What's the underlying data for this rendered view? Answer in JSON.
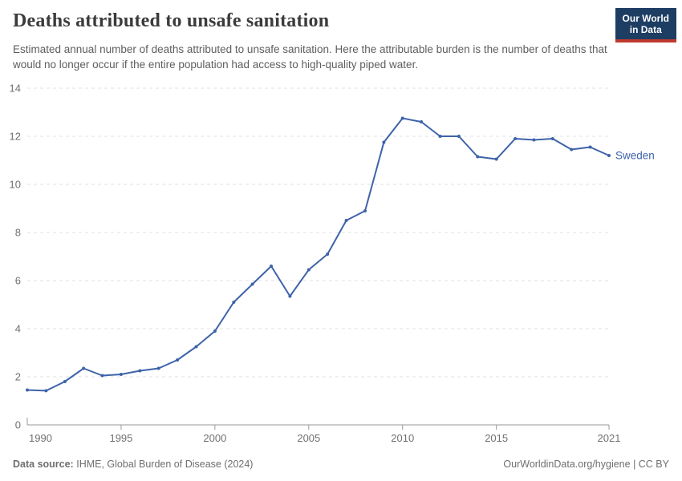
{
  "header": {
    "title": "Deaths attributed to unsafe sanitation",
    "subtitle": "Estimated annual number of deaths attributed to unsafe sanitation. Here the attributable burden is the number of deaths that would no longer occur if the entire population had access to high-quality piped water.",
    "logo": {
      "line1": "Our World",
      "line2": "in Data",
      "bg_color": "#1d3d63",
      "stripe_color": "#bf392d"
    }
  },
  "chart_data": {
    "type": "line",
    "title": "Deaths attributed to unsafe sanitation",
    "xlabel": "",
    "ylabel": "",
    "x": [
      1990,
      1991,
      1992,
      1993,
      1994,
      1995,
      1996,
      1997,
      1998,
      1999,
      2000,
      2001,
      2002,
      2003,
      2004,
      2005,
      2006,
      2007,
      2008,
      2009,
      2010,
      2011,
      2012,
      2013,
      2014,
      2015,
      2016,
      2017,
      2018,
      2019,
      2020,
      2021
    ],
    "series": [
      {
        "name": "Sweden",
        "color": "#3e63a9",
        "values": [
          1.45,
          1.42,
          1.8,
          2.35,
          2.05,
          2.1,
          2.25,
          2.35,
          2.7,
          3.25,
          3.9,
          5.1,
          5.85,
          6.6,
          5.35,
          6.45,
          7.1,
          8.5,
          8.9,
          11.75,
          12.75,
          12.6,
          12.0,
          12.0,
          11.15,
          11.05,
          11.9,
          11.85,
          11.9,
          11.45,
          11.55,
          11.2
        ]
      }
    ],
    "xlim": [
      1990,
      2021
    ],
    "ylim": [
      0,
      14
    ],
    "yticks": [
      0,
      2,
      4,
      6,
      8,
      10,
      12,
      14
    ],
    "xticks": [
      1990,
      1995,
      2000,
      2005,
      2010,
      2015,
      2021
    ],
    "grid": "horizontal dashed",
    "legend_position": "line-end-label",
    "style": {
      "grid_color": "#e7e7e7",
      "axis_color": "#999999",
      "tick_label_color": "#707070"
    }
  },
  "footer": {
    "source_label": "Data source:",
    "source_text": "IHME, Global Burden of Disease (2024)",
    "rights": "OurWorldinData.org/hygiene | CC BY"
  }
}
